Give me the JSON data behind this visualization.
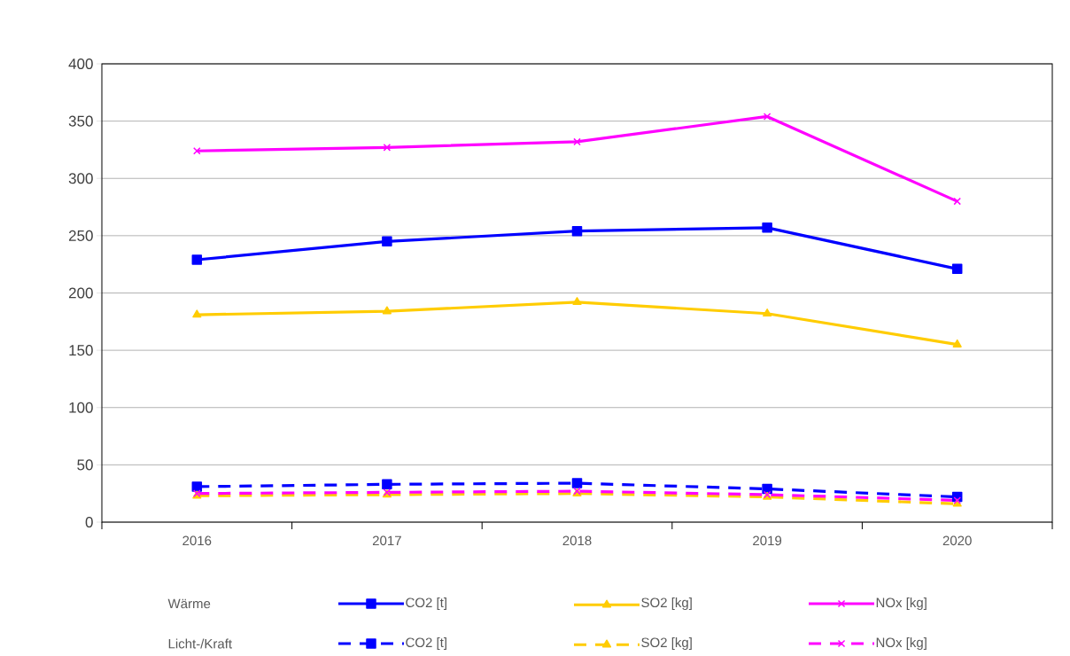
{
  "chart_data": {
    "type": "line",
    "categories": [
      "2016",
      "2017",
      "2018",
      "2019",
      "2020"
    ],
    "ylim": [
      0,
      400
    ],
    "yticks": [
      0,
      50,
      100,
      150,
      200,
      250,
      300,
      350,
      400
    ],
    "grid": "y",
    "legend": "bottom",
    "annotations": [
      "Wärme",
      "Licht-/Kraft"
    ],
    "series": [
      {
        "name": "CO2 [t]",
        "color": "#0000ff",
        "marker": "square",
        "line_style": "solid",
        "values": [
          229,
          245,
          254,
          257,
          221
        ]
      },
      {
        "name": "SO2 [kg]",
        "color": "#ffcc00",
        "marker": "triangle",
        "line_style": "solid",
        "values": [
          181,
          184,
          192,
          182,
          155
        ]
      },
      {
        "name": "NOx [kg]",
        "color": "#ff00ff",
        "marker": "cross",
        "line_style": "solid",
        "values": [
          324,
          327,
          332,
          354,
          280
        ]
      },
      {
        "name": "CO2 [t]",
        "color": "#0000ff",
        "marker": "square",
        "line_style": "dashed",
        "values": [
          31,
          33,
          34,
          29,
          22
        ]
      },
      {
        "name": "SO2 [kg]",
        "color": "#ffcc00",
        "marker": "triangle",
        "line_style": "dashed",
        "values": [
          23,
          24,
          25,
          22,
          16
        ]
      },
      {
        "name": "NOx [kg]",
        "color": "#ff00ff",
        "marker": "cross",
        "line_style": "dashed",
        "values": [
          25,
          26,
          27,
          24,
          19
        ]
      }
    ]
  }
}
